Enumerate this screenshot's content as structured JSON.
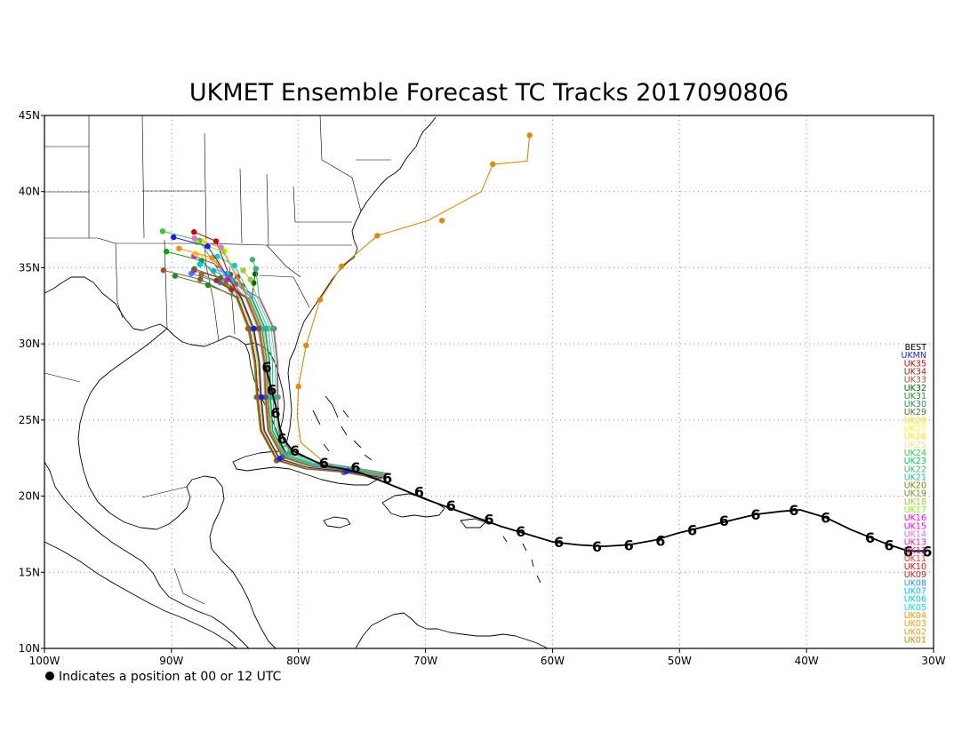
{
  "title": "UKMET Ensemble Forecast TC Tracks 2017090806",
  "footnote": "Indicates a position at 00 or 12 UTC",
  "map": {
    "lon_range": [
      -100,
      -30
    ],
    "lat_range": [
      10,
      45
    ],
    "lon_ticks": [
      "100W",
      "90W",
      "80W",
      "70W",
      "60W",
      "50W",
      "40W",
      "30W"
    ],
    "lat_ticks": [
      "10N",
      "15N",
      "20N",
      "25N",
      "30N",
      "35N",
      "40N",
      "45N"
    ],
    "grid": true
  },
  "legend": {
    "placement": "right",
    "entries": [
      {
        "label": "BEST",
        "color": "#000000"
      },
      {
        "label": "UKMN",
        "color": "#1a1aff"
      },
      {
        "label": "UK35",
        "color": "#cc0000"
      },
      {
        "label": "UK34",
        "color": "#8b2500"
      },
      {
        "label": "UK33",
        "color": "#a0522d"
      },
      {
        "label": "UK32",
        "color": "#006400"
      },
      {
        "label": "UK31",
        "color": "#228b22"
      },
      {
        "label": "UK30",
        "color": "#2e8b57"
      },
      {
        "label": "UK29",
        "color": "#556b2f"
      },
      {
        "label": "UK28",
        "color": "#ffd700"
      },
      {
        "label": "UK27",
        "color": "#ffff00"
      },
      {
        "label": "UK26",
        "color": "#ffe600"
      },
      {
        "label": "UK25",
        "color": "#f0e68c"
      },
      {
        "label": "UK24",
        "color": "#32cd32"
      },
      {
        "label": "UK23",
        "color": "#00c957"
      },
      {
        "label": "UK22",
        "color": "#3cb371"
      },
      {
        "label": "UK21",
        "color": "#20b2aa"
      },
      {
        "label": "UK20",
        "color": "#808000"
      },
      {
        "label": "UK19",
        "color": "#6b8e23"
      },
      {
        "label": "UK18",
        "color": "#9acd32"
      },
      {
        "label": "UK17",
        "color": "#7cfc00"
      },
      {
        "label": "UK16",
        "color": "#ff00ff"
      },
      {
        "label": "UK15",
        "color": "#ee00ee"
      },
      {
        "label": "UK14",
        "color": "#da70d6"
      },
      {
        "label": "UK13",
        "color": "#ff1493"
      },
      {
        "label": "UK12",
        "color": "#c71585"
      },
      {
        "label": "UK11",
        "color": "#ff3030"
      },
      {
        "label": "UK10",
        "color": "#ff0000"
      },
      {
        "label": "UK09",
        "color": "#b22222"
      },
      {
        "label": "UK08",
        "color": "#1e90ff"
      },
      {
        "label": "UK07",
        "color": "#00bfff"
      },
      {
        "label": "UK06",
        "color": "#00ced1"
      },
      {
        "label": "UK05",
        "color": "#00e5ee"
      },
      {
        "label": "UK04",
        "color": "#ff8c00"
      },
      {
        "label": "UK03",
        "color": "#ff9900"
      },
      {
        "label": "UK02",
        "color": "#daa520"
      },
      {
        "label": "UK01",
        "color": "#cd8500"
      }
    ]
  },
  "tracks": {
    "best": {
      "name": "BEST",
      "color": "#000000",
      "points": [
        [
          -30.5,
          16.4
        ],
        [
          -32,
          16.4
        ],
        [
          -33.5,
          16.8
        ],
        [
          -35,
          17.3
        ],
        [
          -36.5,
          17.8
        ],
        [
          -38.5,
          18.6
        ],
        [
          -40.5,
          19.1
        ],
        [
          -42,
          19.0
        ],
        [
          -44,
          18.8
        ],
        [
          -46,
          18.4
        ],
        [
          -48,
          18.0
        ],
        [
          -50,
          17.6
        ],
        [
          -52,
          17.1
        ],
        [
          -54,
          16.8
        ],
        [
          -56,
          16.7
        ],
        [
          -58,
          16.8
        ],
        [
          -60,
          17.0
        ],
        [
          -62,
          17.5
        ],
        [
          -64,
          18.0
        ],
        [
          -66,
          18.6
        ],
        [
          -68,
          19.2
        ],
        [
          -70,
          19.8
        ],
        [
          -72,
          20.5
        ],
        [
          -73.5,
          21.0
        ],
        [
          -75,
          21.5
        ],
        [
          -76.5,
          21.8
        ],
        [
          -78,
          22.0
        ],
        [
          -79.5,
          22.6
        ],
        [
          -80.5,
          23.0
        ],
        [
          -81.2,
          23.8
        ],
        [
          -81.5,
          24.6
        ],
        [
          -81.7,
          25.6
        ],
        [
          -82,
          26.6
        ],
        [
          -82.3,
          27.6
        ],
        [
          -82.6,
          28.5
        ]
      ],
      "symbols": [
        [
          -30.5,
          16.4
        ],
        [
          -32,
          16.4
        ],
        [
          -33.5,
          16.8
        ],
        [
          -35,
          17.3
        ],
        [
          -38.5,
          18.6
        ],
        [
          -41,
          19.1
        ],
        [
          -44,
          18.8
        ],
        [
          -46.5,
          18.4
        ],
        [
          -49,
          17.8
        ],
        [
          -51.5,
          17.1
        ],
        [
          -54,
          16.8
        ],
        [
          -56.5,
          16.7
        ],
        [
          -59.5,
          17.0
        ],
        [
          -62.5,
          17.7
        ],
        [
          -65,
          18.5
        ],
        [
          -68,
          19.4
        ],
        [
          -70.5,
          20.3
        ],
        [
          -73,
          21.2
        ],
        [
          -75.5,
          21.9
        ],
        [
          -78,
          22.2
        ],
        [
          -80.3,
          23.0
        ],
        [
          -81.3,
          23.8
        ],
        [
          -81.8,
          25.5
        ],
        [
          -82.1,
          27.0
        ],
        [
          -82.5,
          28.5
        ]
      ]
    },
    "orange_outlier": {
      "name": "UK01",
      "color": "#d98c00",
      "points": [
        [
          -73.2,
          21.3
        ],
        [
          -77.5,
          21.9
        ],
        [
          -79.8,
          23.5
        ],
        [
          -80.1,
          25.2
        ],
        [
          -80.0,
          27.2
        ],
        [
          -79.4,
          29.9
        ],
        [
          -78.3,
          32.9
        ],
        [
          -76.6,
          35.1
        ],
        [
          -73.8,
          37.1
        ],
        [
          -69.8,
          38.1
        ],
        [
          -65.6,
          40.0
        ],
        [
          -64.7,
          41.8
        ],
        [
          -62.0,
          42.0
        ],
        [
          -61.8,
          43.7
        ]
      ],
      "dots": [
        [
          -80.0,
          27.2
        ],
        [
          -79.4,
          29.9
        ],
        [
          -78.3,
          32.9
        ],
        [
          -76.6,
          35.1
        ],
        [
          -73.8,
          37.1
        ],
        [
          -68.7,
          38.1
        ],
        [
          -64.7,
          41.8
        ],
        [
          -61.8,
          43.7
        ]
      ]
    },
    "ensemble_colors": [
      "#ff0000",
      "#ff00ff",
      "#00aa00",
      "#ffff00",
      "#00ced1",
      "#8b4513",
      "#1e90ff",
      "#32cd32",
      "#cc0000",
      "#ffd700",
      "#006400",
      "#ee00ee",
      "#808000",
      "#00bfff",
      "#a0522d",
      "#9acd32",
      "#7cfc00",
      "#20b2aa",
      "#b22222",
      "#ff8c00",
      "#3cb371",
      "#da70d6",
      "#556b2f",
      "#228b22",
      "#1a1aff"
    ]
  }
}
